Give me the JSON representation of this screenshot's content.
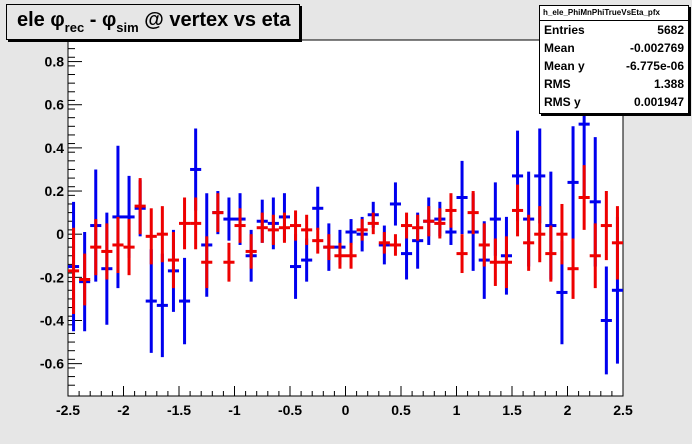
{
  "title": {
    "prefix": "ele ",
    "phi1": "φ",
    "sub1": "rec",
    "mid": " - ",
    "phi2": "φ",
    "sub2": "sim",
    "suffix": " @ vertex vs eta"
  },
  "stats": {
    "name": "h_ele_PhiMnPhiTrueVsEta_pfx",
    "rows": [
      {
        "label": "Entries",
        "value": "5682"
      },
      {
        "label": "Mean",
        "value": "-0.002769"
      },
      {
        "label": "Mean y",
        "value": "-6.775e-06"
      },
      {
        "label": "RMS",
        "value": "1.388"
      },
      {
        "label": "RMS y",
        "value": "0.001947"
      }
    ]
  },
  "chart_data": {
    "type": "scatter",
    "title": "ele φrec - φsim @ vertex vs eta",
    "xlim": [
      -2.5,
      2.5
    ],
    "ylim": [
      -0.75,
      0.9
    ],
    "y_multiplier": "×10⁻³",
    "grid": false,
    "x_ticks": [
      "-2.5",
      "-2",
      "-1.5",
      "-1",
      "-0.5",
      "0",
      "0.5",
      "1",
      "1.5",
      "2",
      "2.5"
    ],
    "y_ticks": [
      "-0.6",
      "-0.4",
      "-0.2",
      "0",
      "0.2",
      "0.4",
      "0.6",
      "0.8"
    ],
    "series": [
      {
        "color": "#0000ee",
        "bin_width": 0.1,
        "points": [
          {
            "x": -2.45,
            "y": -0.15,
            "err": 0.3
          },
          {
            "x": -2.35,
            "y": -0.22,
            "err": 0.23
          },
          {
            "x": -2.25,
            "y": 0.04,
            "err": 0.26
          },
          {
            "x": -2.15,
            "y": -0.16,
            "err": 0.26
          },
          {
            "x": -2.05,
            "y": 0.08,
            "err": 0.33
          },
          {
            "x": -1.95,
            "y": 0.08,
            "err": 0.19
          },
          {
            "x": -1.85,
            "y": 0.12,
            "err": 0.13
          },
          {
            "x": -1.75,
            "y": -0.31,
            "err": 0.24
          },
          {
            "x": -1.65,
            "y": -0.33,
            "err": 0.24
          },
          {
            "x": -1.55,
            "y": -0.17,
            "err": 0.19
          },
          {
            "x": -1.45,
            "y": -0.31,
            "err": 0.2
          },
          {
            "x": -1.35,
            "y": 0.3,
            "err": 0.19
          },
          {
            "x": -1.25,
            "y": -0.05,
            "err": 0.24
          },
          {
            "x": -1.15,
            "y": 0.1,
            "err": 0.1
          },
          {
            "x": -1.05,
            "y": 0.07,
            "err": 0.1
          },
          {
            "x": -0.95,
            "y": 0.07,
            "err": 0.12
          },
          {
            "x": -0.85,
            "y": -0.1,
            "err": 0.12
          },
          {
            "x": -0.75,
            "y": 0.06,
            "err": 0.1
          },
          {
            "x": -0.65,
            "y": 0.05,
            "err": 0.12
          },
          {
            "x": -0.55,
            "y": 0.08,
            "err": 0.11
          },
          {
            "x": -0.45,
            "y": -0.15,
            "err": 0.15
          },
          {
            "x": -0.35,
            "y": -0.12,
            "err": 0.1
          },
          {
            "x": -0.25,
            "y": 0.12,
            "err": 0.1
          },
          {
            "x": -0.15,
            "y": -0.06,
            "err": 0.11
          },
          {
            "x": -0.05,
            "y": -0.06,
            "err": 0.08
          },
          {
            "x": 0.05,
            "y": 0.01,
            "err": 0.06
          },
          {
            "x": 0.15,
            "y": 0.0,
            "err": 0.08
          },
          {
            "x": 0.25,
            "y": 0.09,
            "err": 0.06
          },
          {
            "x": 0.35,
            "y": -0.05,
            "err": 0.09
          },
          {
            "x": 0.45,
            "y": 0.14,
            "err": 0.1
          },
          {
            "x": 0.55,
            "y": -0.09,
            "err": 0.12
          },
          {
            "x": 0.65,
            "y": -0.03,
            "err": 0.13
          },
          {
            "x": 0.75,
            "y": 0.06,
            "err": 0.11
          },
          {
            "x": 0.85,
            "y": 0.07,
            "err": 0.08
          },
          {
            "x": 0.95,
            "y": 0.01,
            "err": 0.06
          },
          {
            "x": 1.05,
            "y": 0.17,
            "err": 0.17
          },
          {
            "x": 1.15,
            "y": 0.01,
            "err": 0.18
          },
          {
            "x": 1.25,
            "y": -0.12,
            "err": 0.18
          },
          {
            "x": 1.35,
            "y": 0.07,
            "err": 0.17
          },
          {
            "x": 1.45,
            "y": -0.1,
            "err": 0.18
          },
          {
            "x": 1.55,
            "y": 0.27,
            "err": 0.21
          },
          {
            "x": 1.65,
            "y": 0.07,
            "err": 0.22
          },
          {
            "x": 1.75,
            "y": 0.27,
            "err": 0.22
          },
          {
            "x": 1.85,
            "y": 0.04,
            "err": 0.25
          },
          {
            "x": 1.95,
            "y": -0.27,
            "err": 0.24
          },
          {
            "x": 2.05,
            "y": 0.24,
            "err": 0.26
          },
          {
            "x": 2.15,
            "y": 0.51,
            "err": 0.34
          },
          {
            "x": 2.25,
            "y": 0.15,
            "err": 0.3
          },
          {
            "x": 2.35,
            "y": -0.4,
            "err": 0.25
          },
          {
            "x": 2.45,
            "y": -0.26,
            "err": 0.34
          }
        ]
      },
      {
        "color": "#ee0000",
        "bin_width": 0.1,
        "points": [
          {
            "x": -2.45,
            "y": -0.17,
            "err": 0.2
          },
          {
            "x": -2.35,
            "y": -0.21,
            "err": 0.12
          },
          {
            "x": -2.25,
            "y": -0.06,
            "err": 0.13
          },
          {
            "x": -2.15,
            "y": -0.08,
            "err": 0.13
          },
          {
            "x": -2.05,
            "y": -0.05,
            "err": 0.13
          },
          {
            "x": -1.95,
            "y": -0.06,
            "err": 0.13
          },
          {
            "x": -1.85,
            "y": 0.13,
            "err": 0.13
          },
          {
            "x": -1.75,
            "y": -0.01,
            "err": 0.13
          },
          {
            "x": -1.65,
            "y": 0.0,
            "err": 0.13
          },
          {
            "x": -1.55,
            "y": -0.12,
            "err": 0.13
          },
          {
            "x": -1.45,
            "y": 0.05,
            "err": 0.12
          },
          {
            "x": -1.35,
            "y": 0.05,
            "err": 0.12
          },
          {
            "x": -1.25,
            "y": -0.13,
            "err": 0.12
          },
          {
            "x": -1.15,
            "y": 0.1,
            "err": 0.09
          },
          {
            "x": -1.05,
            "y": -0.13,
            "err": 0.09
          },
          {
            "x": -0.95,
            "y": 0.04,
            "err": 0.08
          },
          {
            "x": -0.85,
            "y": -0.08,
            "err": 0.08
          },
          {
            "x": -0.75,
            "y": 0.03,
            "err": 0.07
          },
          {
            "x": -0.65,
            "y": 0.02,
            "err": 0.07
          },
          {
            "x": -0.55,
            "y": 0.03,
            "err": 0.07
          },
          {
            "x": -0.45,
            "y": 0.04,
            "err": 0.07
          },
          {
            "x": -0.35,
            "y": 0.02,
            "err": 0.07
          },
          {
            "x": -0.25,
            "y": -0.03,
            "err": 0.06
          },
          {
            "x": -0.15,
            "y": -0.06,
            "err": 0.06
          },
          {
            "x": -0.05,
            "y": -0.1,
            "err": 0.06
          },
          {
            "x": 0.05,
            "y": -0.1,
            "err": 0.06
          },
          {
            "x": 0.15,
            "y": 0.02,
            "err": 0.05
          },
          {
            "x": 0.25,
            "y": 0.05,
            "err": 0.05
          },
          {
            "x": 0.35,
            "y": -0.04,
            "err": 0.05
          },
          {
            "x": 0.45,
            "y": -0.05,
            "err": 0.05
          },
          {
            "x": 0.55,
            "y": 0.04,
            "err": 0.06
          },
          {
            "x": 0.65,
            "y": 0.03,
            "err": 0.06
          },
          {
            "x": 0.75,
            "y": 0.06,
            "err": 0.07
          },
          {
            "x": 0.85,
            "y": 0.05,
            "err": 0.07
          },
          {
            "x": 0.95,
            "y": 0.11,
            "err": 0.08
          },
          {
            "x": 1.05,
            "y": -0.09,
            "err": 0.09
          },
          {
            "x": 1.15,
            "y": 0.1,
            "err": 0.1
          },
          {
            "x": 1.25,
            "y": -0.05,
            "err": 0.1
          },
          {
            "x": 1.35,
            "y": -0.13,
            "err": 0.11
          },
          {
            "x": 1.45,
            "y": -0.13,
            "err": 0.12
          },
          {
            "x": 1.55,
            "y": 0.11,
            "err": 0.12
          },
          {
            "x": 1.65,
            "y": -0.04,
            "err": 0.13
          },
          {
            "x": 1.75,
            "y": 0.0,
            "err": 0.13
          },
          {
            "x": 1.85,
            "y": -0.09,
            "err": 0.13
          },
          {
            "x": 1.95,
            "y": 0.0,
            "err": 0.14
          },
          {
            "x": 2.05,
            "y": -0.16,
            "err": 0.14
          },
          {
            "x": 2.15,
            "y": 0.17,
            "err": 0.15
          },
          {
            "x": 2.25,
            "y": -0.1,
            "err": 0.15
          },
          {
            "x": 2.35,
            "y": 0.04,
            "err": 0.16
          },
          {
            "x": 2.45,
            "y": -0.04,
            "err": 0.17
          }
        ]
      }
    ]
  }
}
